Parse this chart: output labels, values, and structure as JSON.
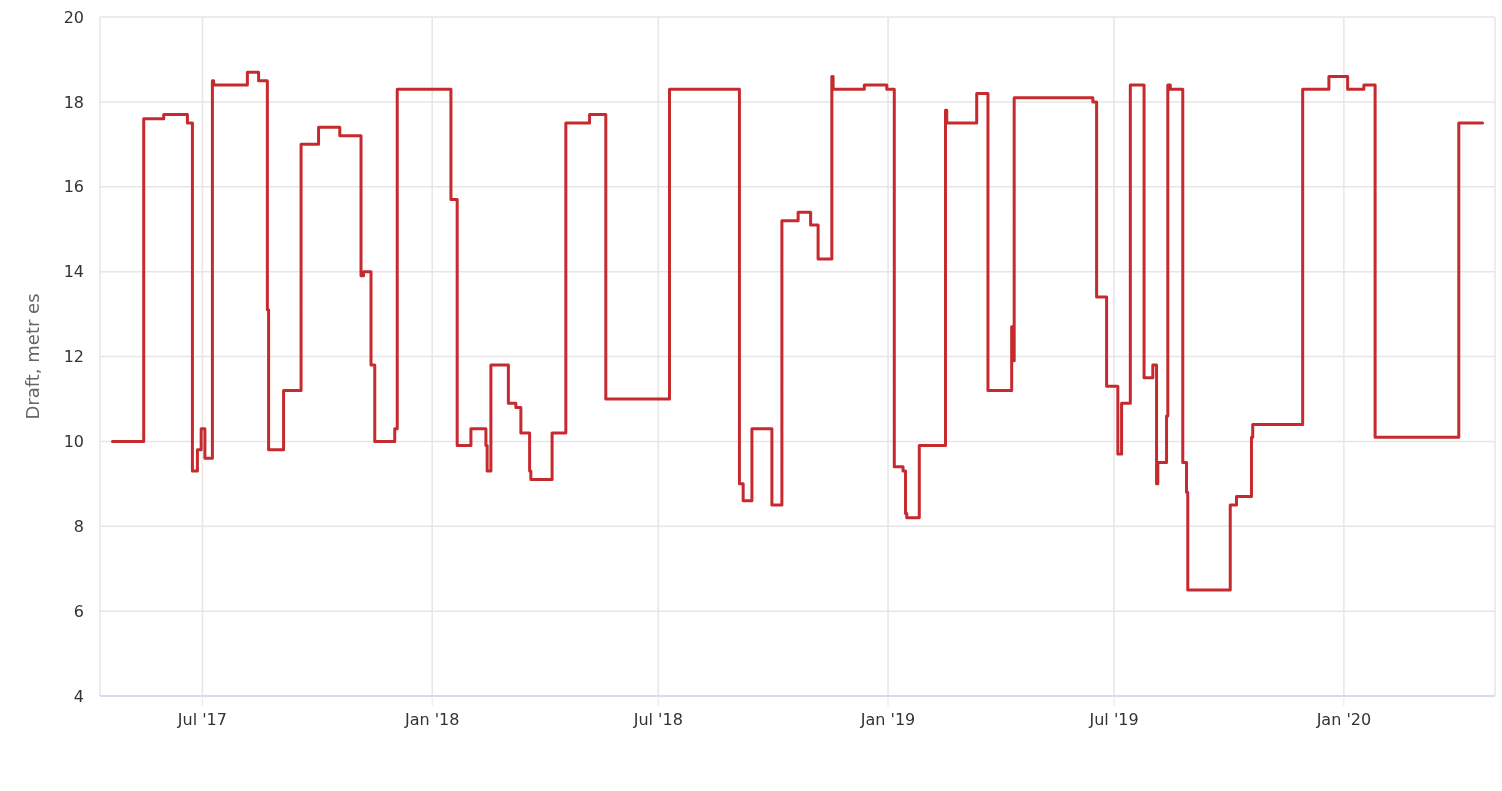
{
  "chart_data": {
    "type": "step",
    "ylabel": "Draft, metr es",
    "x": [
      "2017-04-20",
      "2017-05-15",
      "2017-05-31",
      "2017-06-19",
      "2017-06-23",
      "2017-06-27",
      "2017-06-30",
      "2017-07-03",
      "2017-07-09",
      "2017-07-10",
      "2017-08-06",
      "2017-08-15",
      "2017-08-22",
      "2017-08-23",
      "2017-09-04",
      "2017-09-18",
      "2017-10-02",
      "2017-10-19",
      "2017-11-05",
      "2017-11-07",
      "2017-11-13",
      "2017-11-16",
      "2017-12-02",
      "2017-12-04",
      "2018-01-16",
      "2018-01-21",
      "2018-02-01",
      "2018-02-13",
      "2018-02-14",
      "2018-02-17",
      "2018-03-03",
      "2018-03-09",
      "2018-03-13",
      "2018-03-20",
      "2018-03-21",
      "2018-04-07",
      "2018-04-18",
      "2018-05-07",
      "2018-05-20",
      "2018-07-10",
      "2018-09-04",
      "2018-09-07",
      "2018-09-14",
      "2018-09-30",
      "2018-10-08",
      "2018-10-21",
      "2018-10-31",
      "2018-11-06",
      "2018-11-17",
      "2018-11-18",
      "2018-12-13",
      "2018-12-31",
      "2019-01-06",
      "2019-01-13",
      "2019-01-15",
      "2019-01-16",
      "2019-01-26",
      "2019-02-16",
      "2019-02-17",
      "2019-03-13",
      "2019-03-22",
      "2019-04-10",
      "2019-04-11",
      "2019-04-12",
      "2019-06-14",
      "2019-06-17",
      "2019-06-25",
      "2019-07-04",
      "2019-07-07",
      "2019-07-14",
      "2019-07-25",
      "2019-08-01",
      "2019-08-04",
      "2019-08-05",
      "2019-08-12",
      "2019-08-13",
      "2019-08-15",
      "2019-08-25",
      "2019-08-28",
      "2019-08-29",
      "2019-10-02",
      "2019-10-07",
      "2019-10-19",
      "2019-10-20",
      "2019-11-29",
      "2019-12-20",
      "2020-01-04",
      "2020-01-17",
      "2020-01-26",
      "2020-04-02",
      "2020-04-21"
    ],
    "values": [
      10,
      17.6,
      17.7,
      17.5,
      9.3,
      9.8,
      10.3,
      9.6,
      18.5,
      18.4,
      18.7,
      18.5,
      13.1,
      9.8,
      11.2,
      17,
      17.4,
      17.2,
      13.9,
      14,
      11.8,
      10,
      10.3,
      18.3,
      15.7,
      9.9,
      10.3,
      9.9,
      9.3,
      11.8,
      10.9,
      10.8,
      10.2,
      9.3,
      9.1,
      10.2,
      17.5,
      17.7,
      11,
      18.3,
      9,
      8.6,
      10.3,
      8.5,
      15.2,
      15.4,
      15.1,
      14.3,
      18.6,
      18.3,
      18.4,
      18.3,
      9.4,
      9.3,
      8.3,
      8.2,
      9.9,
      17.8,
      17.5,
      18.2,
      11.2,
      12.7,
      11.9,
      18.1,
      18,
      13.4,
      11.3,
      9.7,
      10.9,
      18.4,
      11.5,
      11.8,
      9,
      9.5,
      10.6,
      18.4,
      18.3,
      9.5,
      8.8,
      6.5,
      8.5,
      8.7,
      10.1,
      10.4,
      18.3,
      18.6,
      18.3,
      18.4,
      10.1,
      17.5,
      17.5
    ],
    "color": "#c62a2f",
    "marker": "none",
    "line_style": "solid",
    "xlim": [
      "2017-04-10",
      "2020-05-01"
    ],
    "xticks": [
      {
        "value": "2017-07-01",
        "label": "Jul '17"
      },
      {
        "value": "2018-01-01",
        "label": "Jan '18"
      },
      {
        "value": "2018-07-01",
        "label": "Jul '18"
      },
      {
        "value": "2019-01-01",
        "label": "Jan '19"
      },
      {
        "value": "2019-07-01",
        "label": "Jul '19"
      },
      {
        "value": "2020-01-01",
        "label": "Jan '20"
      }
    ],
    "ylim": [
      4,
      20
    ],
    "yticks": [
      4,
      6,
      8,
      10,
      12,
      14,
      16,
      18,
      20
    ],
    "grid": true
  }
}
